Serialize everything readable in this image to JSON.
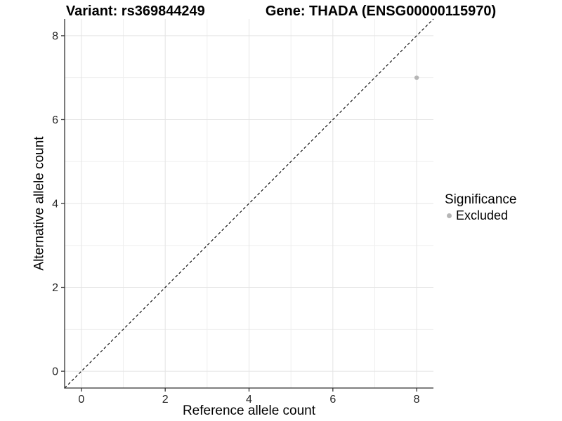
{
  "title": {
    "variant": "Variant: rs369844249",
    "gene": "Gene: THADA (ENSG00000115970)"
  },
  "legend": {
    "title": "Significance",
    "items": [
      {
        "label": "Excluded",
        "color": "#b6b6b6"
      }
    ]
  },
  "chart_data": {
    "type": "scatter",
    "title": "Variant: rs369844249   Gene: THADA (ENSG00000115970)",
    "xlabel": "Reference allele count",
    "ylabel": "Alternative allele count",
    "xlim": [
      -0.4,
      8.4
    ],
    "ylim": [
      -0.4,
      8.4
    ],
    "x_ticks": [
      0,
      2,
      4,
      6,
      8
    ],
    "y_ticks": [
      0,
      2,
      4,
      6,
      8
    ],
    "x_tick_labels": [
      "0",
      "2",
      "4",
      "6",
      "8"
    ],
    "y_tick_labels": [
      "0",
      "2",
      "4",
      "6",
      "8"
    ],
    "grid_major": [
      0,
      2,
      4,
      6,
      8
    ],
    "grid_minor": [
      1,
      3,
      5,
      7
    ],
    "grid": "on",
    "legend_position": "right",
    "series": [
      {
        "name": "Excluded",
        "points": [
          {
            "x": 8,
            "y": 7
          }
        ],
        "color": "#b6b6b6"
      }
    ],
    "reference_line": {
      "kind": "identity y=x",
      "from": [
        -0.4,
        -0.4
      ],
      "to": [
        8.4,
        8.4
      ],
      "style": "dashed",
      "color": "#000000"
    },
    "colors": {
      "background": "#ffffff",
      "grid_major": "#e4e4e4",
      "grid_minor": "#efefef",
      "axis_line": "#333333",
      "tick_mark": "#333333",
      "tick_label": "#262626",
      "point": "#b6b6b6",
      "dashed_line": "#000000"
    }
  }
}
